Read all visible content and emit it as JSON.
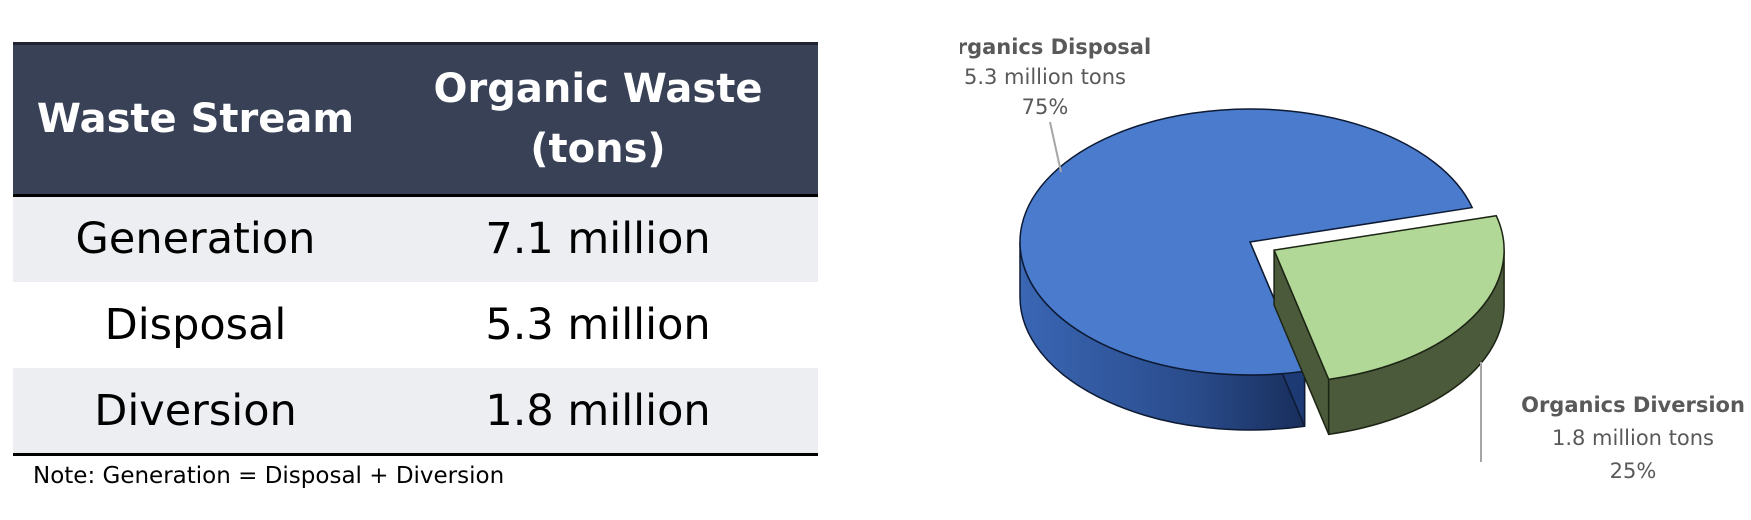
{
  "table": {
    "headers": [
      "Waste Stream",
      [
        "Organic Waste",
        "(tons)"
      ]
    ],
    "rows": [
      {
        "stream": "Generation",
        "tons": "7.1 million"
      },
      {
        "stream": "Disposal",
        "tons": "5.3 million"
      },
      {
        "stream": "Diversion",
        "tons": "1.8 million"
      }
    ],
    "note": "Note: Generation = Disposal + Diversion"
  },
  "colors": {
    "header_bg": "#384156",
    "row_shade": "#ECEEF2",
    "disposal": "#4A7BCD",
    "disposal_side": "#203A6B",
    "diversion": "#B1D897",
    "diversion_side": "#4B5A3A",
    "label_text": "#595959"
  },
  "chart_data": {
    "type": "pie",
    "style": "3d-exploded",
    "slices": [
      {
        "name": "Organics Disposal",
        "value": 5.3,
        "value_label": "5.3 million tons",
        "percent_label": "75%",
        "percent": 75
      },
      {
        "name": "Organics Diversion",
        "value": 1.8,
        "value_label": "1.8 million tons",
        "percent_label": "25%",
        "percent": 25
      }
    ],
    "exploded_slice": "Organics Diversion",
    "legend": false
  }
}
